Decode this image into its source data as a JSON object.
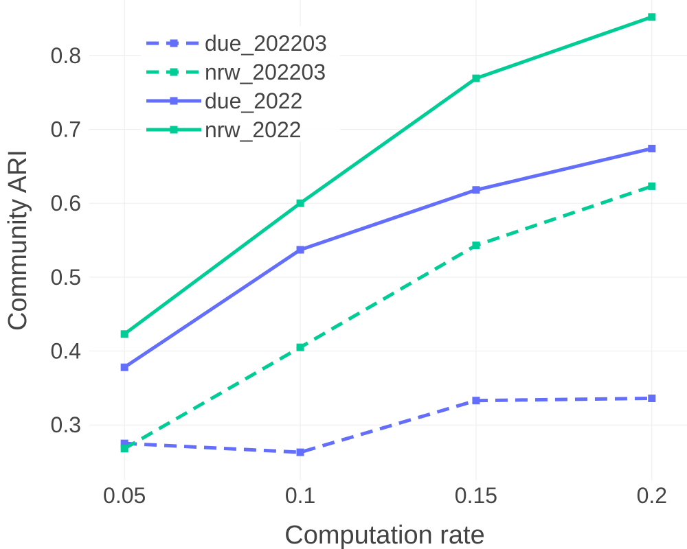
{
  "chart_data": {
    "type": "line",
    "title": "",
    "xlabel": "Computation rate",
    "ylabel": "Community ARI",
    "x": [
      0.05,
      0.1,
      0.15,
      0.2
    ],
    "x_tick_labels": [
      "0.05",
      "0.1",
      "0.15",
      "0.2"
    ],
    "y_ticks": [
      0.3,
      0.4,
      0.5,
      0.6,
      0.7,
      0.8
    ],
    "y_tick_labels": [
      "0.3",
      "0.4",
      "0.5",
      "0.6",
      "0.7",
      "0.8"
    ],
    "xlim": [
      0.04,
      0.21
    ],
    "ylim": [
      0.225,
      0.875
    ],
    "grid": true,
    "legend_position": "top-left",
    "series": [
      {
        "name": "due_202203",
        "values": [
          0.275,
          0.263,
          0.333,
          0.336
        ],
        "color": "#636efa",
        "dash": "dashed",
        "marker": "square"
      },
      {
        "name": "nrw_202203",
        "values": [
          0.268,
          0.405,
          0.543,
          0.623
        ],
        "color": "#00cc96",
        "dash": "dashed",
        "marker": "square"
      },
      {
        "name": "due_2022",
        "values": [
          0.378,
          0.537,
          0.618,
          0.674
        ],
        "color": "#636efa",
        "dash": "solid",
        "marker": "square"
      },
      {
        "name": "nrw_2022",
        "values": [
          0.423,
          0.6,
          0.769,
          0.852
        ],
        "color": "#00cc96",
        "dash": "solid",
        "marker": "square"
      }
    ]
  }
}
